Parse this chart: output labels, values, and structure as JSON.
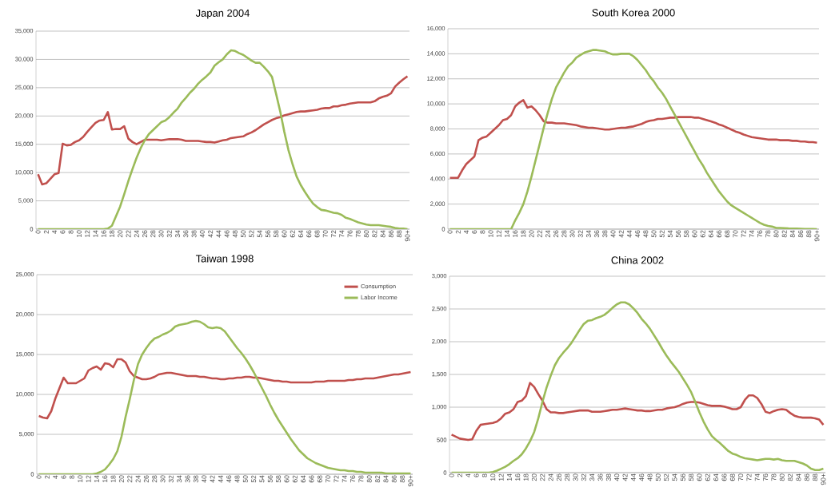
{
  "chart_data": [
    {
      "type": "line",
      "title": "Japan 2004",
      "categories": [
        "0",
        null,
        "2",
        null,
        "4",
        null,
        "6",
        null,
        "8",
        null,
        "10",
        null,
        "12",
        null,
        "14",
        null,
        "16",
        null,
        "18",
        null,
        "20",
        null,
        "22",
        null,
        "24",
        null,
        "26",
        null,
        "28",
        null,
        "30",
        null,
        "32",
        null,
        "34",
        null,
        "36",
        null,
        "38",
        null,
        "40",
        null,
        "42",
        null,
        "44",
        null,
        "46",
        null,
        "48",
        null,
        "50",
        null,
        "52",
        null,
        "54",
        null,
        "56",
        null,
        "58",
        null,
        "60",
        null,
        "62",
        null,
        "64",
        null,
        "66",
        null,
        "68",
        null,
        "70",
        null,
        "72",
        null,
        "74",
        null,
        "76",
        null,
        "78",
        null,
        "80",
        null,
        "82",
        null,
        "84",
        null,
        "86",
        null,
        "88",
        null,
        "90+"
      ],
      "series": [
        {
          "color": "#c0504d",
          "values": [
            9700,
            7900,
            8100,
            8900,
            9700,
            9900,
            15100,
            14800,
            14900,
            15400,
            15700,
            16300,
            17200,
            18000,
            18800,
            19200,
            19300,
            20700,
            17600,
            17700,
            17700,
            18200,
            16000,
            15400,
            15000,
            15400,
            15800,
            15800,
            15800,
            15800,
            15700,
            15800,
            15900,
            15900,
            15900,
            15800,
            15600,
            15600,
            15600,
            15600,
            15500,
            15400,
            15400,
            15300,
            15500,
            15700,
            15800,
            16100,
            16200,
            16300,
            16400,
            16800,
            17100,
            17500,
            18000,
            18500,
            18900,
            19300,
            19600,
            19800,
            20100,
            20300,
            20500,
            20700,
            20800,
            20800,
            20900,
            21000,
            21100,
            21300,
            21400,
            21400,
            21700,
            21700,
            21900,
            22000,
            22200,
            22300,
            22400,
            22400,
            22400,
            22400,
            22600,
            23100,
            23400,
            23600,
            24000,
            25200,
            25900,
            26500,
            27000
          ]
        },
        {
          "color": "#9bbb59",
          "values": [
            0,
            0,
            0,
            0,
            0,
            0,
            0,
            0,
            0,
            0,
            0,
            0,
            0,
            0,
            0,
            0,
            0,
            100,
            600,
            2300,
            4000,
            6200,
            8500,
            10600,
            12600,
            14300,
            15700,
            16800,
            17500,
            18200,
            18900,
            19200,
            19800,
            20600,
            21300,
            22400,
            23200,
            24100,
            24800,
            25700,
            26400,
            27000,
            27700,
            28900,
            29500,
            30000,
            30900,
            31600,
            31500,
            31100,
            30800,
            30300,
            29800,
            29400,
            29400,
            28700,
            27900,
            26900,
            23900,
            20800,
            17200,
            14000,
            11500,
            9300,
            7800,
            6600,
            5500,
            4500,
            3900,
            3400,
            3300,
            3100,
            2900,
            2800,
            2500,
            2000,
            1800,
            1500,
            1200,
            1000,
            800,
            700,
            700,
            700,
            600,
            500,
            400,
            200,
            100,
            100,
            0
          ]
        }
      ],
      "ylim": [
        0,
        35000
      ],
      "yticks": [
        0,
        {
          "value": 5000,
          "label": "5,000"
        },
        {
          "value": 10000,
          "label": "10,000"
        },
        {
          "value": 15000,
          "label": "15,000"
        },
        {
          "value": 20000,
          "label": "20,000"
        },
        {
          "value": 25000,
          "label": "25,000"
        },
        {
          "value": 30000,
          "label": "30,000"
        },
        {
          "value": 35000,
          "label": "35,000"
        }
      ],
      "grid": "y",
      "legend": false,
      "marker": "none",
      "line_style": "solid"
    },
    {
      "type": "line",
      "title": "South Korea 2000",
      "categories": [
        "0",
        null,
        "2",
        null,
        "4",
        null,
        "6",
        null,
        "8",
        null,
        "10",
        null,
        "12",
        null,
        "14",
        null,
        "16",
        null,
        "18",
        null,
        "20",
        null,
        "22",
        null,
        "24",
        null,
        "26",
        null,
        "28",
        null,
        "30",
        null,
        "32",
        null,
        "34",
        null,
        "36",
        null,
        "38",
        null,
        "40",
        null,
        "42",
        null,
        "44",
        null,
        "46",
        null,
        "48",
        null,
        "50",
        null,
        "52",
        null,
        "54",
        null,
        "56",
        null,
        "58",
        null,
        "60",
        null,
        "62",
        null,
        "64",
        null,
        "66",
        null,
        "68",
        null,
        "70",
        null,
        "72",
        null,
        "74",
        null,
        "76",
        null,
        "78",
        null,
        "80",
        null,
        "82",
        null,
        "84",
        null,
        "86",
        null,
        "88",
        null,
        "90+"
      ],
      "series": [
        {
          "color": "#c0504d",
          "values": [
            4100,
            4100,
            4100,
            4700,
            5200,
            5500,
            5800,
            7100,
            7300,
            7400,
            7700,
            8000,
            8300,
            8700,
            8800,
            9100,
            9800,
            10100,
            10300,
            9700,
            9800,
            9500,
            9100,
            8600,
            8500,
            8500,
            8450,
            8450,
            8450,
            8400,
            8350,
            8300,
            8200,
            8150,
            8100,
            8100,
            8050,
            8000,
            7950,
            7950,
            8000,
            8050,
            8100,
            8100,
            8150,
            8200,
            8300,
            8400,
            8550,
            8650,
            8700,
            8800,
            8800,
            8850,
            8900,
            8900,
            8950,
            8950,
            8950,
            8950,
            8900,
            8900,
            8800,
            8700,
            8600,
            8500,
            8350,
            8250,
            8100,
            7950,
            7800,
            7700,
            7550,
            7450,
            7350,
            7300,
            7250,
            7200,
            7150,
            7150,
            7150,
            7100,
            7100,
            7100,
            7050,
            7050,
            7000,
            7000,
            6950,
            6950,
            6900
          ]
        },
        {
          "color": "#9bbb59",
          "values": [
            0,
            0,
            0,
            0,
            0,
            0,
            0,
            0,
            0,
            0,
            0,
            0,
            0,
            0,
            0,
            0,
            700,
            1300,
            2000,
            3000,
            4200,
            5500,
            6800,
            8100,
            9300,
            10400,
            11300,
            11900,
            12500,
            13000,
            13300,
            13700,
            13900,
            14100,
            14200,
            14300,
            14300,
            14250,
            14200,
            14050,
            13950,
            13950,
            14000,
            14000,
            14000,
            13800,
            13500,
            13100,
            12700,
            12200,
            11800,
            11300,
            10900,
            10400,
            9800,
            9200,
            8600,
            8000,
            7400,
            6800,
            6200,
            5600,
            5100,
            4500,
            4000,
            3500,
            3000,
            2600,
            2200,
            1900,
            1700,
            1500,
            1300,
            1100,
            900,
            700,
            500,
            350,
            250,
            200,
            100,
            100,
            80,
            60,
            50,
            40,
            30,
            20,
            20,
            10,
            0
          ]
        }
      ],
      "ylim": [
        0,
        16000
      ],
      "yticks": [
        0,
        {
          "value": 2000,
          "label": "2,000"
        },
        {
          "value": 4000,
          "label": "4,000"
        },
        {
          "value": 6000,
          "label": "6,000"
        },
        {
          "value": 8000,
          "label": "8,000"
        },
        {
          "value": 10000,
          "label": "10,000"
        },
        {
          "value": 12000,
          "label": "12,000"
        },
        {
          "value": 14000,
          "label": "14,000"
        },
        {
          "value": 16000,
          "label": "16,000"
        }
      ],
      "grid": "y",
      "legend": false,
      "marker": "none",
      "line_style": "solid"
    },
    {
      "type": "line",
      "title": "Taiwan 1998",
      "categories": [
        "0",
        null,
        "2",
        null,
        "4",
        null,
        "6",
        null,
        "8",
        null,
        "10",
        null,
        "12",
        null,
        "14",
        null,
        "16",
        null,
        "18",
        null,
        "20",
        null,
        "22",
        null,
        "24",
        null,
        "26",
        null,
        "28",
        null,
        "30",
        null,
        "32",
        null,
        "34",
        null,
        "36",
        null,
        "38",
        null,
        "40",
        null,
        "42",
        null,
        "44",
        null,
        "46",
        null,
        "48",
        null,
        "50",
        null,
        "52",
        null,
        "54",
        null,
        "56",
        null,
        "58",
        null,
        "60",
        null,
        "62",
        null,
        "64",
        null,
        "66",
        null,
        "68",
        null,
        "70",
        null,
        "72",
        null,
        "74",
        null,
        "76",
        null,
        "78",
        null,
        "80",
        null,
        "82",
        null,
        "84",
        null,
        "86",
        null,
        "88",
        null,
        "90+"
      ],
      "series": [
        {
          "name": "Consumption",
          "color": "#c0504d",
          "values": [
            7300,
            7100,
            7000,
            7900,
            9500,
            10800,
            12100,
            11400,
            11400,
            11400,
            11700,
            12000,
            13000,
            13300,
            13500,
            13100,
            13900,
            13800,
            13400,
            14400,
            14400,
            14000,
            12900,
            12300,
            12100,
            11900,
            11900,
            12000,
            12200,
            12500,
            12600,
            12700,
            12700,
            12600,
            12500,
            12400,
            12300,
            12300,
            12300,
            12200,
            12200,
            12100,
            12000,
            12000,
            11900,
            11900,
            12000,
            12000,
            12100,
            12100,
            12200,
            12200,
            12100,
            12100,
            12000,
            11900,
            11800,
            11700,
            11700,
            11600,
            11600,
            11500,
            11500,
            11500,
            11500,
            11500,
            11500,
            11600,
            11600,
            11600,
            11700,
            11700,
            11700,
            11700,
            11700,
            11800,
            11800,
            11900,
            11900,
            12000,
            12000,
            12000,
            12100,
            12200,
            12300,
            12400,
            12500,
            12500,
            12600,
            12700,
            12800
          ]
        },
        {
          "name": "Labor Income",
          "color": "#9bbb59",
          "values": [
            0,
            0,
            0,
            0,
            0,
            0,
            0,
            0,
            0,
            0,
            0,
            0,
            0,
            0,
            100,
            300,
            600,
            1200,
            1900,
            2900,
            4700,
            7200,
            9400,
            11800,
            13800,
            15000,
            15800,
            16500,
            17000,
            17200,
            17500,
            17700,
            18000,
            18500,
            18700,
            18800,
            18900,
            19100,
            19200,
            19100,
            18800,
            18400,
            18300,
            18400,
            18300,
            17900,
            17200,
            16500,
            15800,
            15200,
            14500,
            13700,
            12800,
            11800,
            10800,
            9800,
            8700,
            7700,
            6800,
            6000,
            5200,
            4400,
            3700,
            3000,
            2500,
            2000,
            1700,
            1400,
            1200,
            1000,
            800,
            700,
            600,
            500,
            500,
            400,
            400,
            300,
            300,
            200,
            200,
            200,
            200,
            200,
            100,
            100,
            100,
            100,
            100,
            100,
            100
          ]
        }
      ],
      "ylim": [
        0,
        25000
      ],
      "yticks": [
        0,
        {
          "value": 5000,
          "label": "5,000"
        },
        {
          "value": 10000,
          "label": "10,000"
        },
        {
          "value": 15000,
          "label": "15,000"
        },
        {
          "value": 20000,
          "label": "20,000"
        },
        {
          "value": 25000,
          "label": "25,000"
        }
      ],
      "grid": "y",
      "legend": "top right",
      "marker": "none",
      "line_style": "solid"
    },
    {
      "type": "line",
      "title": "China 2002",
      "categories": [
        "0",
        null,
        "2",
        null,
        "4",
        null,
        "6",
        null,
        "8",
        null,
        "10",
        null,
        "12",
        null,
        "14",
        null,
        "16",
        null,
        "18",
        null,
        "20",
        null,
        "22",
        null,
        "24",
        null,
        "26",
        null,
        "28",
        null,
        "30",
        null,
        "32",
        null,
        "34",
        null,
        "36",
        null,
        "38",
        null,
        "40",
        null,
        "42",
        null,
        "44",
        null,
        "46",
        null,
        "48",
        null,
        "50",
        null,
        "52",
        null,
        "54",
        null,
        "56",
        null,
        "58",
        null,
        "60",
        null,
        "62",
        null,
        "64",
        null,
        "66",
        null,
        "68",
        null,
        "70",
        null,
        "72",
        null,
        "74",
        null,
        "76",
        null,
        "78",
        null,
        "80",
        null,
        "82",
        null,
        "84",
        null,
        "86",
        null,
        "88",
        null,
        "90+"
      ],
      "series": [
        {
          "color": "#c0504d",
          "values": [
            580,
            550,
            520,
            510,
            500,
            510,
            640,
            730,
            740,
            750,
            760,
            780,
            830,
            900,
            920,
            970,
            1080,
            1100,
            1170,
            1370,
            1310,
            1200,
            1100,
            970,
            920,
            920,
            910,
            910,
            920,
            930,
            940,
            950,
            950,
            950,
            930,
            930,
            930,
            940,
            950,
            960,
            960,
            970,
            980,
            970,
            960,
            950,
            950,
            940,
            940,
            950,
            960,
            960,
            980,
            990,
            1000,
            1020,
            1050,
            1070,
            1080,
            1080,
            1070,
            1050,
            1030,
            1020,
            1020,
            1020,
            1010,
            990,
            970,
            970,
            1000,
            1110,
            1180,
            1180,
            1140,
            1050,
            930,
            910,
            940,
            960,
            970,
            960,
            910,
            870,
            850,
            840,
            840,
            840,
            830,
            810,
            730
          ]
        },
        {
          "color": "#9bbb59",
          "values": [
            0,
            0,
            0,
            0,
            0,
            0,
            0,
            0,
            0,
            0,
            10,
            30,
            60,
            90,
            130,
            180,
            220,
            280,
            370,
            480,
            620,
            830,
            1080,
            1300,
            1480,
            1640,
            1750,
            1830,
            1900,
            1980,
            2080,
            2180,
            2270,
            2320,
            2330,
            2360,
            2380,
            2410,
            2460,
            2520,
            2570,
            2600,
            2600,
            2570,
            2510,
            2440,
            2350,
            2280,
            2200,
            2100,
            2000,
            1890,
            1790,
            1700,
            1620,
            1540,
            1440,
            1340,
            1230,
            1080,
            920,
            780,
            660,
            560,
            500,
            450,
            390,
            330,
            290,
            270,
            240,
            220,
            210,
            200,
            190,
            200,
            210,
            210,
            200,
            210,
            190,
            180,
            180,
            180,
            160,
            140,
            110,
            60,
            40,
            40,
            60
          ]
        }
      ],
      "ylim": [
        0,
        3000
      ],
      "yticks": [
        0,
        {
          "value": 500,
          "label": "500"
        },
        {
          "value": 1000,
          "label": "1,000"
        },
        {
          "value": 1500,
          "label": "1,500"
        },
        {
          "value": 2000,
          "label": "2,000"
        },
        {
          "value": 2500,
          "label": "2,500"
        },
        {
          "value": 3000,
          "label": "3,000"
        }
      ],
      "grid": "y",
      "legend": false,
      "marker": "none",
      "line_style": "solid"
    }
  ]
}
